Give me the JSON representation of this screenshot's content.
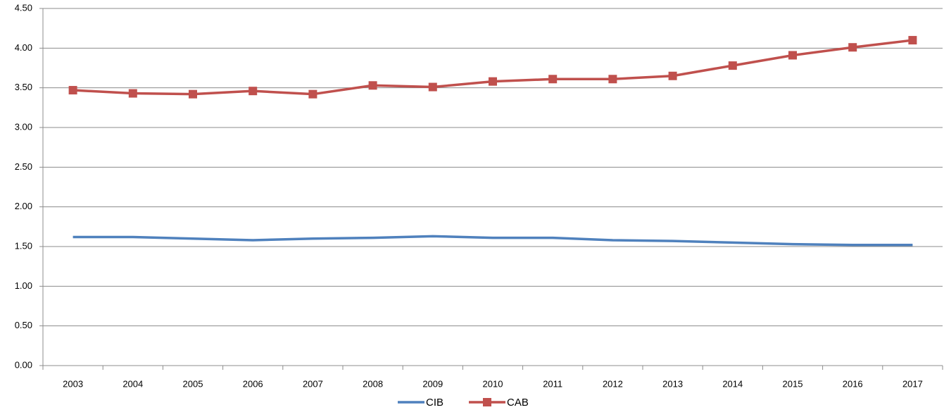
{
  "chart_data": {
    "type": "line",
    "categories": [
      "2003",
      "2004",
      "2005",
      "2006",
      "2007",
      "2008",
      "2009",
      "2010",
      "2011",
      "2012",
      "2013",
      "2014",
      "2015",
      "2016",
      "2017"
    ],
    "series": [
      {
        "name": "CIB",
        "color": "#4f81bd",
        "values": [
          1.62,
          1.62,
          1.6,
          1.58,
          1.6,
          1.61,
          1.63,
          1.61,
          1.61,
          1.58,
          1.57,
          1.55,
          1.53,
          1.52,
          1.52
        ]
      },
      {
        "name": "CAB",
        "color": "#c0504d",
        "marker": "square",
        "values": [
          3.47,
          3.43,
          3.42,
          3.46,
          3.42,
          3.53,
          3.51,
          3.58,
          3.61,
          3.61,
          3.65,
          3.78,
          3.91,
          4.01,
          4.1
        ]
      }
    ],
    "ylim": [
      0,
      4.5
    ],
    "yticks": [
      {
        "value": 0,
        "label": "0.00"
      },
      {
        "value": 0.5,
        "label": "0.50"
      },
      {
        "value": 1,
        "label": "1.00"
      },
      {
        "value": 1.5,
        "label": "1.50"
      },
      {
        "value": 2,
        "label": "2.00"
      },
      {
        "value": 2.5,
        "label": "2.50"
      },
      {
        "value": 3,
        "label": "3.00"
      },
      {
        "value": 3.5,
        "label": "3.50"
      },
      {
        "value": 4,
        "label": "4.00"
      },
      {
        "value": 4.5,
        "label": "4.50"
      }
    ],
    "grid": true,
    "legend": "bottom"
  }
}
